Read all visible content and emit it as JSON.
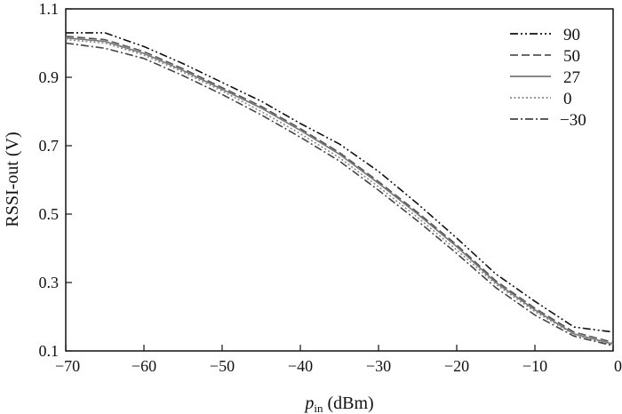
{
  "chart_data": {
    "type": "line",
    "xlabel": {
      "main": "p",
      "sub": "in",
      "unit": " (dBm)"
    },
    "ylabel": "RSSI-out (V)",
    "xlim": [
      -70,
      0
    ],
    "ylim": [
      0.1,
      1.1
    ],
    "xticks": [
      -70,
      -60,
      -50,
      -40,
      -30,
      -20,
      -10,
      0
    ],
    "xtick_labels": [
      "−70",
      "−60",
      "−50",
      "−40",
      "−30",
      "−20",
      "−10",
      "0"
    ],
    "yticks": [
      0.1,
      0.3,
      0.5,
      0.7,
      0.9,
      1.1
    ],
    "ytick_labels": [
      "0.1",
      "0.3",
      "0.5",
      "0.7",
      "0.9",
      "1.1"
    ],
    "grid": false,
    "legend_position": "top-right",
    "x": [
      -70,
      -65,
      -60,
      -55,
      -50,
      -45,
      -40,
      -35,
      -30,
      -25,
      -20,
      -15,
      -10,
      -5,
      0
    ],
    "series": [
      {
        "name": "90",
        "style": "dashdotdot",
        "color": "#111111",
        "values": [
          1.03,
          1.03,
          0.99,
          0.94,
          0.885,
          0.83,
          0.765,
          0.705,
          0.625,
          0.53,
          0.43,
          0.325,
          0.245,
          0.17,
          0.155
        ]
      },
      {
        "name": "50",
        "style": "dashed",
        "color": "#555555",
        "values": [
          1.02,
          1.01,
          0.975,
          0.925,
          0.87,
          0.815,
          0.75,
          0.68,
          0.595,
          0.505,
          0.41,
          0.305,
          0.225,
          0.155,
          0.125
        ]
      },
      {
        "name": "27",
        "style": "solid",
        "color": "#777777",
        "values": [
          1.015,
          1.005,
          0.97,
          0.92,
          0.865,
          0.81,
          0.745,
          0.675,
          0.59,
          0.5,
          0.405,
          0.3,
          0.22,
          0.15,
          0.12
        ]
      },
      {
        "name": "0",
        "style": "dotted",
        "color": "#888888",
        "values": [
          1.01,
          1.0,
          0.965,
          0.915,
          0.86,
          0.8,
          0.735,
          0.665,
          0.58,
          0.49,
          0.395,
          0.295,
          0.215,
          0.148,
          0.118
        ]
      },
      {
        "name": "−30",
        "style": "dashdot",
        "color": "#444444",
        "values": [
          1.0,
          0.985,
          0.955,
          0.905,
          0.85,
          0.79,
          0.725,
          0.655,
          0.57,
          0.48,
          0.385,
          0.285,
          0.205,
          0.143,
          0.115
        ]
      }
    ]
  }
}
